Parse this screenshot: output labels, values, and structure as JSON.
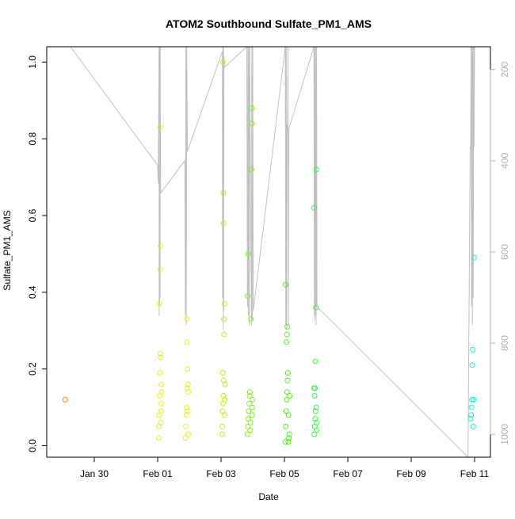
{
  "chart_data": {
    "type": "scatter",
    "title": "ATOM2 Southbound Sulfate_PM1_AMS",
    "xlabel": "Date",
    "ylabel": "Sulfate_PM1_AMS",
    "xlim": [
      "2017-01-28T12:00",
      "2017-02-11T12:00"
    ],
    "ylim": [
      -0.03,
      1.04
    ],
    "y2lim": [
      1050,
      150
    ],
    "x_ticks": [
      {
        "label": "Jan 30",
        "date": "2017-01-30T00:00"
      },
      {
        "label": "Feb 01",
        "date": "2017-02-01T00:00"
      },
      {
        "label": "Feb 03",
        "date": "2017-02-03T00:00"
      },
      {
        "label": "Feb 05",
        "date": "2017-02-05T00:00"
      },
      {
        "label": "Feb 07",
        "date": "2017-02-07T00:00"
      },
      {
        "label": "Feb 09",
        "date": "2017-02-09T00:00"
      },
      {
        "label": "Feb 11",
        "date": "2017-02-11T00:00"
      }
    ],
    "y_ticks": [
      0.0,
      0.2,
      0.4,
      0.6,
      0.8,
      1.0
    ],
    "y_tick_labels": [
      "0.0",
      "0.2",
      "0.4",
      "0.6",
      "0.8",
      "1.0"
    ],
    "y2_ticks": [
      200,
      400,
      600,
      800,
      1000
    ],
    "y2_tick_labels": [
      "200",
      "400",
      "600",
      "800",
      "1000"
    ],
    "grid": false,
    "legend": "none",
    "colors": {
      "altitude_line": "#c0c0c0",
      "right_axis": "#b0b0b0"
    },
    "series": [
      {
        "color": "#ff7f24",
        "points": [
          [
            "2017-01-29T02:00",
            0.12
          ]
        ]
      },
      {
        "color": "#e2f21a",
        "points": [
          [
            "2017-02-01T00:50",
            0.02
          ],
          [
            "2017-02-01T01:00",
            0.05
          ],
          [
            "2017-02-01T01:10",
            0.08
          ],
          [
            "2017-02-01T01:30",
            0.13
          ],
          [
            "2017-02-01T01:40",
            0.19
          ],
          [
            "2017-02-01T02:00",
            0.24
          ],
          [
            "2017-02-01T01:20",
            0.37
          ],
          [
            "2017-02-01T01:50",
            0.46
          ],
          [
            "2017-02-01T02:10",
            0.52
          ],
          [
            "2017-02-01T01:45",
            0.83
          ],
          [
            "2017-02-01T02:30",
            0.09
          ],
          [
            "2017-02-01T02:40",
            0.11
          ],
          [
            "2017-02-01T02:20",
            0.06
          ],
          [
            "2017-02-01T02:50",
            0.16
          ],
          [
            "2017-02-01T03:00",
            0.14
          ],
          [
            "2017-02-01T02:15",
            0.23
          ],
          [
            "2017-02-01T21:00",
            0.02
          ],
          [
            "2017-02-01T21:20",
            0.05
          ],
          [
            "2017-02-01T21:40",
            0.08
          ],
          [
            "2017-02-01T22:00",
            0.1
          ],
          [
            "2017-02-01T22:20",
            0.15
          ],
          [
            "2017-02-01T22:40",
            0.2
          ],
          [
            "2017-02-01T22:10",
            0.27
          ],
          [
            "2017-02-01T22:00",
            0.33
          ],
          [
            "2017-02-01T23:00",
            0.16
          ],
          [
            "2017-02-01T23:20",
            0.14
          ],
          [
            "2017-02-01T23:10",
            0.03
          ],
          [
            "2017-02-01T22:50",
            0.09
          ]
        ]
      },
      {
        "color": "#b8f21a",
        "points": [
          [
            "2017-02-03T00:50",
            0.03
          ],
          [
            "2017-02-03T01:00",
            0.05
          ],
          [
            "2017-02-03T01:10",
            0.09
          ],
          [
            "2017-02-03T01:30",
            0.11
          ],
          [
            "2017-02-03T01:40",
            0.13
          ],
          [
            "2017-02-03T02:00",
            0.17
          ],
          [
            "2017-02-03T01:20",
            0.19
          ],
          [
            "2017-02-03T02:20",
            0.29
          ],
          [
            "2017-02-03T02:10",
            0.33
          ],
          [
            "2017-02-03T02:30",
            0.37
          ],
          [
            "2017-02-03T01:50",
            0.58
          ],
          [
            "2017-02-03T01:45",
            0.66
          ],
          [
            "2017-02-03T01:35",
            1.0
          ],
          [
            "2017-02-03T02:40",
            0.08
          ],
          [
            "2017-02-03T02:50",
            0.12
          ],
          [
            "2017-02-03T03:00",
            0.16
          ]
        ]
      },
      {
        "color": "#7cf21a",
        "points": [
          [
            "2017-02-03T20:00",
            0.03
          ],
          [
            "2017-02-03T20:20",
            0.05
          ],
          [
            "2017-02-03T20:40",
            0.07
          ],
          [
            "2017-02-03T21:00",
            0.09
          ],
          [
            "2017-02-03T21:20",
            0.11
          ],
          [
            "2017-02-03T21:40",
            0.13
          ],
          [
            "2017-02-03T20:10",
            0.39
          ],
          [
            "2017-02-03T20:30",
            0.5
          ],
          [
            "2017-02-03T22:40",
            0.33
          ],
          [
            "2017-02-03T23:00",
            0.72
          ],
          [
            "2017-02-03T23:20",
            0.84
          ],
          [
            "2017-02-03T23:10",
            0.88
          ],
          [
            "2017-02-03T22:00",
            0.04
          ],
          [
            "2017-02-03T22:20",
            0.06
          ],
          [
            "2017-02-03T23:30",
            0.08
          ],
          [
            "2017-02-03T23:40",
            0.1
          ],
          [
            "2017-02-03T23:50",
            0.12
          ],
          [
            "2017-02-03T21:50",
            0.14
          ]
        ]
      },
      {
        "color": "#4ef21a",
        "points": [
          [
            "2017-02-05T00:40",
            0.01
          ],
          [
            "2017-02-05T01:00",
            0.05
          ],
          [
            "2017-02-05T01:20",
            0.09
          ],
          [
            "2017-02-05T01:40",
            0.12
          ],
          [
            "2017-02-05T02:00",
            0.14
          ],
          [
            "2017-02-05T02:20",
            0.17
          ],
          [
            "2017-02-05T02:40",
            0.19
          ],
          [
            "2017-02-05T01:30",
            0.27
          ],
          [
            "2017-02-05T01:50",
            0.29
          ],
          [
            "2017-02-05T02:10",
            0.31
          ],
          [
            "2017-02-05T00:50",
            0.42
          ],
          [
            "2017-02-05T03:00",
            0.01
          ],
          [
            "2017-02-05T03:20",
            0.02
          ],
          [
            "2017-02-05T03:40",
            0.03
          ],
          [
            "2017-02-05T04:00",
            0.13
          ],
          [
            "2017-02-05T03:10",
            0.08
          ]
        ]
      },
      {
        "color": "#3ef24a",
        "points": [
          [
            "2017-02-05T22:40",
            0.03
          ],
          [
            "2017-02-05T23:00",
            0.05
          ],
          [
            "2017-02-05T23:20",
            0.07
          ],
          [
            "2017-02-05T23:40",
            0.09
          ],
          [
            "2017-02-06T00:00",
            0.1
          ],
          [
            "2017-02-05T22:50",
            0.13
          ],
          [
            "2017-02-05T23:10",
            0.15
          ],
          [
            "2017-02-05T23:30",
            0.22
          ],
          [
            "2017-02-05T23:50",
            0.36
          ],
          [
            "2017-02-05T22:30",
            0.62
          ],
          [
            "2017-02-06T00:10",
            0.72
          ],
          [
            "2017-02-06T00:20",
            0.04
          ],
          [
            "2017-02-06T00:30",
            0.06
          ],
          [
            "2017-02-05T22:20",
            0.15
          ]
        ]
      },
      {
        "color": "#1af2c8",
        "points": [
          [
            "2017-02-10T21:00",
            0.07
          ],
          [
            "2017-02-10T21:20",
            0.08
          ],
          [
            "2017-02-10T21:40",
            0.1
          ],
          [
            "2017-02-10T22:00",
            0.12
          ],
          [
            "2017-02-10T22:20",
            0.21
          ],
          [
            "2017-02-10T22:40",
            0.25
          ],
          [
            "2017-02-10T23:00",
            0.05
          ],
          [
            "2017-02-10T23:20",
            0.12
          ],
          [
            "2017-02-10T23:40",
            0.49
          ]
        ]
      }
    ],
    "altitude_trace": [
      [
        "2017-01-29T06:00",
        150
      ],
      [
        "2017-02-01T00:00",
        410
      ],
      [
        "2017-02-01T00:30",
        450
      ],
      [
        "2017-02-01T01:00",
        150
      ],
      [
        "2017-02-01T01:10",
        740
      ],
      [
        "2017-02-01T01:20",
        150
      ],
      [
        "2017-02-01T01:30",
        720
      ],
      [
        "2017-02-01T01:40",
        150
      ],
      [
        "2017-02-01T01:50",
        700
      ],
      [
        "2017-02-01T02:00",
        150
      ],
      [
        "2017-02-01T02:10",
        460
      ],
      [
        "2017-02-01T02:30",
        470
      ],
      [
        "2017-02-01T20:30",
        400
      ],
      [
        "2017-02-01T21:00",
        740
      ],
      [
        "2017-02-01T21:20",
        150
      ],
      [
        "2017-02-01T21:40",
        760
      ],
      [
        "2017-02-01T22:00",
        150
      ],
      [
        "2017-02-01T22:30",
        380
      ],
      [
        "2017-02-03T01:00",
        160
      ],
      [
        "2017-02-03T01:10",
        700
      ],
      [
        "2017-02-03T01:20",
        150
      ],
      [
        "2017-02-03T01:40",
        770
      ],
      [
        "2017-02-03T01:50",
        150
      ],
      [
        "2017-02-03T02:00",
        730
      ],
      [
        "2017-02-03T02:10",
        170
      ],
      [
        "2017-02-03T02:30",
        195
      ],
      [
        "2017-02-03T19:30",
        150
      ],
      [
        "2017-02-03T20:00",
        720
      ],
      [
        "2017-02-03T20:20",
        150
      ],
      [
        "2017-02-03T20:40",
        740
      ],
      [
        "2017-02-03T21:00",
        150
      ],
      [
        "2017-02-03T21:20",
        760
      ],
      [
        "2017-02-03T21:40",
        150
      ],
      [
        "2017-02-03T23:00",
        760
      ],
      [
        "2017-02-03T23:20",
        150
      ],
      [
        "2017-02-03T23:40",
        750
      ],
      [
        "2017-02-04T00:00",
        150
      ],
      [
        "2017-02-04T00:20",
        730
      ],
      [
        "2017-02-05T00:40",
        150
      ],
      [
        "2017-02-05T01:00",
        760
      ],
      [
        "2017-02-05T01:20",
        150
      ],
      [
        "2017-02-05T01:40",
        770
      ],
      [
        "2017-02-05T02:00",
        320
      ],
      [
        "2017-02-05T02:20",
        340
      ],
      [
        "2017-02-05T02:40",
        150
      ],
      [
        "2017-02-05T03:00",
        760
      ],
      [
        "2017-02-05T03:20",
        330
      ],
      [
        "2017-02-05T22:20",
        150
      ],
      [
        "2017-02-05T22:40",
        750
      ],
      [
        "2017-02-05T23:00",
        150
      ],
      [
        "2017-02-05T23:20",
        740
      ],
      [
        "2017-02-05T23:40",
        150
      ],
      [
        "2017-02-06T00:00",
        760
      ],
      [
        "2017-02-06T00:20",
        150
      ],
      [
        "2017-02-06T00:40",
        720
      ],
      [
        "2017-02-10T19:00",
        1050
      ],
      [
        "2017-02-10T20:40",
        370
      ],
      [
        "2017-02-10T21:00",
        370
      ],
      [
        "2017-02-10T21:20",
        150
      ],
      [
        "2017-02-10T21:40",
        720
      ],
      [
        "2017-02-10T22:00",
        150
      ],
      [
        "2017-02-10T22:20",
        760
      ],
      [
        "2017-02-10T22:40",
        150
      ],
      [
        "2017-02-10T23:00",
        700
      ],
      [
        "2017-02-10T23:20",
        150
      ],
      [
        "2017-02-10T23:40",
        370
      ],
      [
        "2017-02-11T00:00",
        150
      ]
    ]
  }
}
